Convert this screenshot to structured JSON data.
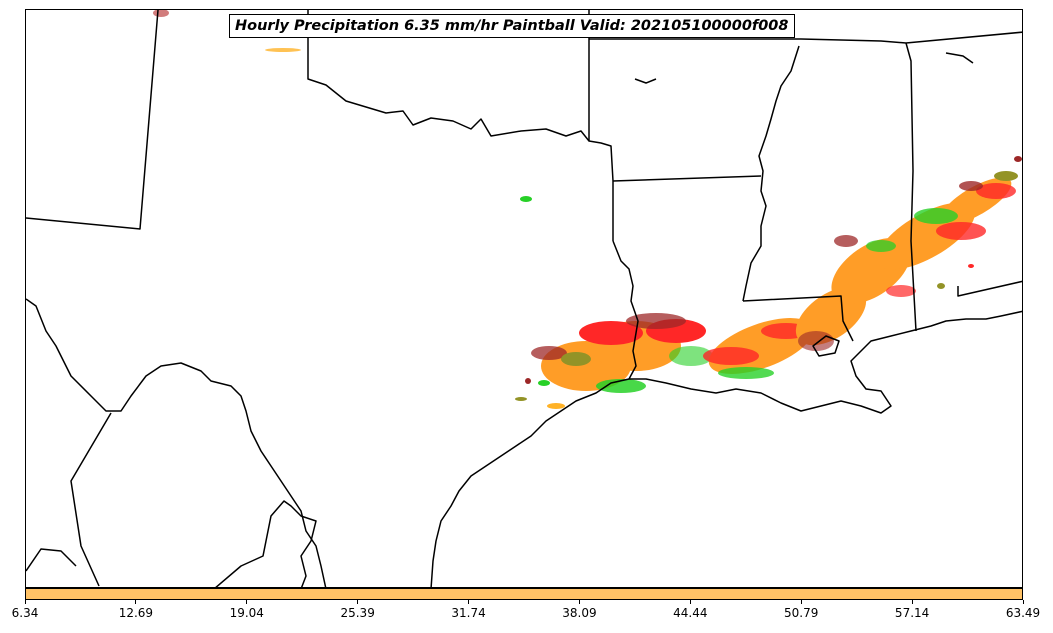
{
  "title": "Hourly Precipitation 6.35 mm/hr Paintball Valid: 202105100000f008",
  "colors": {
    "colorbar": "#ffc266",
    "members": [
      "#ff0000",
      "#ff8c00",
      "#00c800",
      "#8b0000",
      "#808000",
      "#ffa500"
    ]
  },
  "colorbar": {
    "ticks": [
      "6.34",
      "12.69",
      "19.04",
      "25.39",
      "31.74",
      "38.09",
      "44.44",
      "50.79",
      "57.14",
      "63.49"
    ]
  }
}
